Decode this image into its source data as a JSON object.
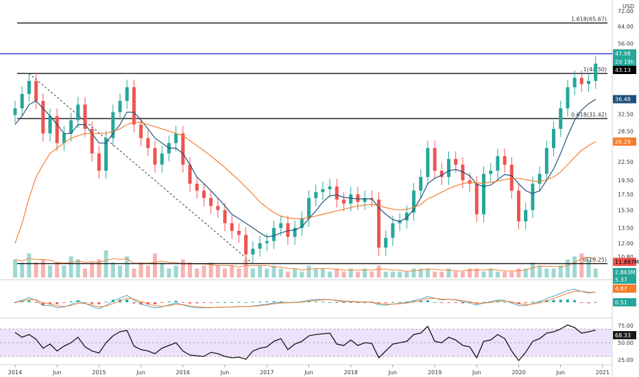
{
  "chart_data": [
    {
      "type": "candlestick",
      "panel": "price",
      "currency": "USD",
      "scale": "log",
      "y_ticks": [
        "72.00",
        "64.00",
        "56.00",
        "48.00",
        "43.13",
        "36.48",
        "32.50",
        "28.50",
        "26.29",
        "22.50",
        "19.50",
        "17.50",
        "15.50",
        "13.50",
        "12.00",
        "10.80",
        "9.70"
      ],
      "visible_tick_values": [
        72,
        64,
        56,
        32.5,
        28.5,
        22.5,
        19.5,
        17.5,
        15.5,
        13.5,
        12,
        10.8,
        9.7
      ],
      "ylim": [
        9.2,
        76
      ],
      "x_labels": [
        "2014",
        "Jun",
        "2015",
        "Jun",
        "2016",
        "Jun",
        "2017",
        "Jun",
        "2018",
        "Jun",
        "2019",
        "Jun",
        "2020",
        "Jun",
        "2021"
      ],
      "xlim": [
        "2014-01",
        "2021-01"
      ],
      "fib_levels": [
        {
          "label": "1.618(65.67)",
          "value": 65.67
        },
        {
          "label": "1(44.50)",
          "value": 44.5
        },
        {
          "label": "0.618(31.42)",
          "value": 31.42
        },
        {
          "label": "0(10.25)",
          "value": 10.25
        }
      ],
      "horizontal_line": {
        "value": 51.8,
        "color": "#1f2fd6"
      },
      "trendline": {
        "from": {
          "date": "2014-03",
          "value": 44.5
        },
        "to": {
          "date": "2016-10",
          "value": 10.25
        },
        "style": "dashed"
      },
      "price_tags": [
        {
          "label": "51.80",
          "value": 51.8,
          "bg": "#1f2fd6",
          "fg": "#ffffff"
        },
        {
          "label": "47.98",
          "value": 47.98,
          "bg": "#26a69a",
          "fg": "#ffffff"
        },
        {
          "label": "2d 19h",
          "value": 45.4,
          "bg": "#26a69a",
          "fg": "#ffffff"
        },
        {
          "label": "43.13",
          "value": 43.13,
          "bg": "#000000",
          "fg": "#ffffff"
        },
        {
          "label": "36.48",
          "value": 36.48,
          "bg": "#1e4f7a",
          "fg": "#ffffff"
        },
        {
          "label": "26.29",
          "value": 26.29,
          "bg": "#f57c2a",
          "fg": "#ffffff"
        }
      ],
      "series": [
        {
          "name": "close",
          "color": "#26a69a",
          "down_color": "#ef5350",
          "x": [
            "2014-01",
            "2014-02",
            "2014-03",
            "2014-04",
            "2014-05",
            "2014-06",
            "2014-07",
            "2014-08",
            "2014-09",
            "2014-10",
            "2014-11",
            "2014-12",
            "2015-01",
            "2015-02",
            "2015-03",
            "2015-04",
            "2015-05",
            "2015-06",
            "2015-07",
            "2015-08",
            "2015-09",
            "2015-10",
            "2015-11",
            "2015-12",
            "2016-01",
            "2016-02",
            "2016-03",
            "2016-04",
            "2016-05",
            "2016-06",
            "2016-07",
            "2016-08",
            "2016-09",
            "2016-10",
            "2016-11",
            "2016-12",
            "2017-01",
            "2017-02",
            "2017-03",
            "2017-04",
            "2017-05",
            "2017-06",
            "2017-07",
            "2017-08",
            "2017-09",
            "2017-10",
            "2017-11",
            "2017-12",
            "2018-01",
            "2018-02",
            "2018-03",
            "2018-04",
            "2018-05",
            "2018-06",
            "2018-07",
            "2018-08",
            "2018-09",
            "2018-10",
            "2018-11",
            "2018-12",
            "2019-01",
            "2019-02",
            "2019-03",
            "2019-04",
            "2019-05",
            "2019-06",
            "2019-07",
            "2019-08",
            "2019-09",
            "2019-10",
            "2019-11",
            "2019-12",
            "2020-01",
            "2020-02",
            "2020-03",
            "2020-04",
            "2020-05",
            "2020-06",
            "2020-07",
            "2020-08",
            "2020-09",
            "2020-10",
            "2020-11",
            "2020-12"
          ],
          "values": [
            34,
            38,
            42,
            36,
            28,
            32,
            26,
            28,
            31,
            35,
            29,
            24,
            21,
            27,
            33,
            36,
            40,
            30,
            27,
            25,
            22,
            24,
            26,
            28,
            22,
            19,
            18,
            17,
            16,
            15.5,
            14,
            13.2,
            12.8,
            11,
            11.5,
            12,
            12.2,
            13.5,
            14,
            12.6,
            13.5,
            14.5,
            17,
            17.8,
            18.2,
            18.6,
            16.8,
            16.3,
            17.5,
            16.5,
            17,
            16.8,
            11.6,
            12.5,
            14,
            14.3,
            15.2,
            18,
            20,
            25,
            21,
            20,
            23,
            22,
            19.5,
            19,
            15,
            20.5,
            21,
            23.5,
            22,
            18,
            14.2,
            15.5,
            19,
            20.5,
            25,
            29,
            34,
            40,
            43,
            41,
            42,
            47.98
          ]
        },
        {
          "name": "ma-fast",
          "color": "#1e4f7a",
          "values": [
            30,
            32,
            35,
            36,
            34,
            32,
            30,
            28,
            28,
            30,
            30,
            28,
            26,
            26,
            28,
            30,
            33,
            33,
            31,
            29,
            27,
            26,
            25,
            25,
            24,
            22,
            20,
            19,
            18,
            17,
            16,
            15,
            14.5,
            14,
            13.5,
            13,
            12.6,
            12.7,
            13,
            13.2,
            13.3,
            13.6,
            14.5,
            15.4,
            16.5,
            17.3,
            17.4,
            17.1,
            17,
            16.9,
            16.9,
            16.9,
            15.8,
            15,
            14.4,
            14.2,
            14.6,
            15.6,
            17,
            19,
            19.8,
            20.3,
            21,
            21.2,
            20.8,
            20.2,
            18.9,
            18.6,
            18.8,
            19.6,
            20.4,
            20.2,
            19,
            18,
            17.6,
            18,
            19.5,
            21.3,
            24,
            27.5,
            31,
            33.6,
            35.2,
            36.48
          ]
        },
        {
          "name": "ma-slow",
          "color": "#f57c2a",
          "values": [
            12,
            14,
            17,
            20,
            22,
            24,
            25,
            26,
            27,
            27.5,
            28,
            28,
            28,
            28,
            28.5,
            29,
            30,
            30.5,
            30.5,
            30,
            29.5,
            29,
            28.5,
            28,
            27.5,
            26.5,
            25.5,
            24.5,
            23.5,
            22.5,
            21.5,
            20.5,
            19.5,
            18.5,
            17.5,
            16.5,
            15.8,
            15.2,
            14.8,
            14.6,
            14.5,
            14.5,
            14.6,
            14.8,
            15,
            15.2,
            15.4,
            15.6,
            15.8,
            16,
            16.1,
            16.2,
            16,
            15.8,
            15.6,
            15.5,
            15.6,
            15.8,
            16.2,
            16.9,
            17.3,
            17.8,
            18.3,
            18.7,
            19,
            19.2,
            19.1,
            19.1,
            19.2,
            19.4,
            19.6,
            19.8,
            19.8,
            19.6,
            19.4,
            19.3,
            19.6,
            20,
            20.8,
            22,
            23.3,
            24.6,
            25.5,
            26.29
          ]
        }
      ]
    },
    {
      "type": "bar",
      "panel": "volume",
      "tags": [
        {
          "label": "11.887M",
          "bg": "#ef5350",
          "fg": "#000000"
        },
        {
          "label": "2.863M",
          "bg": "#26a69a",
          "fg": "#ffffff"
        }
      ],
      "series": [
        {
          "name": "volume",
          "values": [
            6,
            5,
            8,
            5,
            6,
            4,
            5,
            4,
            7,
            6,
            3,
            5,
            6,
            9,
            5,
            4,
            7,
            3,
            5,
            4,
            8,
            5,
            3,
            4,
            6,
            5,
            3,
            4,
            5,
            4,
            3,
            4,
            3,
            6,
            3,
            4,
            3,
            4,
            3,
            2,
            3,
            2,
            4,
            3,
            3,
            2,
            3,
            2,
            3,
            2,
            3,
            2,
            4,
            2,
            2,
            2,
            2,
            3,
            3,
            3,
            2,
            2,
            3,
            2,
            2,
            3,
            3,
            2,
            3,
            2,
            2,
            2,
            3,
            3,
            5,
            4,
            3,
            3,
            4,
            6,
            7,
            8,
            6,
            3
          ]
        }
      ]
    },
    {
      "type": "line",
      "panel": "macd",
      "tags": [
        {
          "label": "5.37",
          "bg": "#26a69a",
          "fg": "#ffffff"
        },
        {
          "label": "4.87",
          "bg": "#f57c2a",
          "fg": "#ffffff"
        },
        {
          "label": "0.51",
          "bg": "#26a69a",
          "fg": "#ffffff"
        }
      ]
    },
    {
      "type": "line",
      "panel": "rsi",
      "y_ticks": [
        "75.00",
        "50.00",
        "25.00"
      ],
      "band": [
        30,
        70
      ],
      "tags": [
        {
          "label": "68.33",
          "bg": "#1a1a1a",
          "fg": "#ffffff"
        }
      ],
      "series": [
        {
          "name": "rsi",
          "values": [
            65,
            58,
            62,
            55,
            42,
            48,
            38,
            45,
            50,
            58,
            44,
            38,
            35,
            50,
            60,
            66,
            68,
            45,
            40,
            38,
            34,
            42,
            46,
            50,
            38,
            32,
            31,
            30,
            36,
            34,
            30,
            28,
            29,
            26,
            38,
            42,
            44,
            52,
            56,
            40,
            48,
            52,
            60,
            62,
            63,
            64,
            48,
            46,
            54,
            46,
            50,
            49,
            28,
            38,
            48,
            50,
            52,
            62,
            64,
            74,
            52,
            50,
            58,
            54,
            46,
            44,
            28,
            52,
            54,
            62,
            56,
            38,
            24,
            36,
            52,
            56,
            64,
            66,
            70,
            76,
            72,
            64,
            66,
            68.33
          ]
        }
      ]
    }
  ]
}
